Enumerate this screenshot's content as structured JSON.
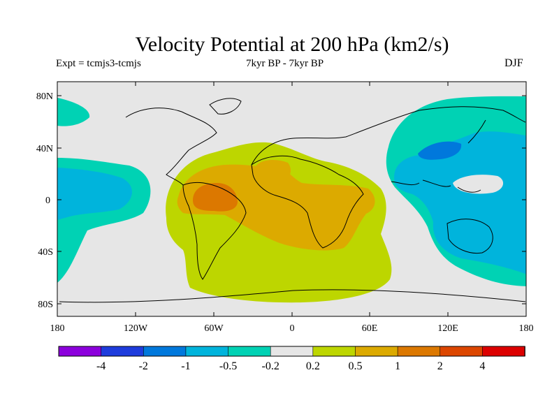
{
  "title": "Velocity Potential at 200 hPa (km2/s)",
  "experiment": "Expt = tcmjs3-tcmjs",
  "period": "7kyr BP - 7kyr BP",
  "season": "DJF",
  "axes": {
    "lat_ticks": [
      "80N",
      "40N",
      "0",
      "40S",
      "80S"
    ],
    "lon_ticks": [
      "180",
      "120W",
      "60W",
      "0",
      "60E",
      "120E",
      "180"
    ]
  },
  "colors": {
    "ocean_neutral": "#e6e6e6",
    "level_pos_02": "#bdd600",
    "level_pos_05": "#dcaa00",
    "level_pos_1": "#dc7800",
    "level_neg_02": "#00d2b4",
    "level_neg_05": "#00b4dc",
    "level_neg_1": "#0078dc"
  },
  "colorbar": {
    "labels": [
      "-4",
      "-2",
      "-1",
      "-0.5",
      "-0.2",
      "0.2",
      "0.5",
      "1",
      "2",
      "4"
    ],
    "colors": [
      "#8c00dc",
      "#1e3cdc",
      "#0078dc",
      "#00b4dc",
      "#00d2b4",
      "#e6e6e6",
      "#bdd600",
      "#dcaa00",
      "#dc7800",
      "#dc4600",
      "#dc0000"
    ]
  }
}
